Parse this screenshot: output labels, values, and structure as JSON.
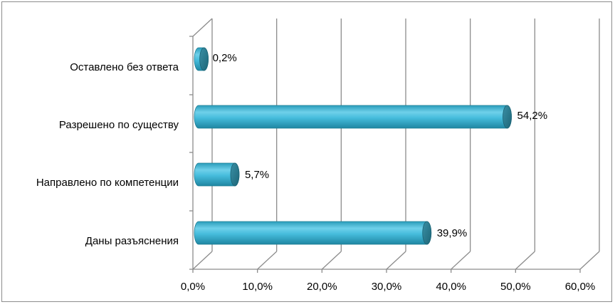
{
  "chart_data": {
    "type": "bar",
    "orientation": "horizontal",
    "style": "3d-cylinder",
    "categories": [
      "Оставлено без ответа",
      "Разрешено по существу",
      "Направлено по компетенции",
      "Даны разъяснения"
    ],
    "values": [
      0.2,
      54.2,
      5.7,
      39.9
    ],
    "data_labels": [
      "0,2%",
      "54,2%",
      "5,7%",
      "39,9%"
    ],
    "x_ticks": [
      0,
      10,
      20,
      30,
      40,
      50,
      60
    ],
    "x_tick_labels": [
      "0,0%",
      "10,0%",
      "20,0%",
      "30,0%",
      "40,0%",
      "50,0%",
      "60,0%"
    ],
    "xlim": [
      0,
      60
    ],
    "title": "",
    "xlabel": "",
    "ylabel": "",
    "grid": true,
    "legend": "none",
    "bar_color": "#3fb7d6",
    "bar_end_color": "#2b7f93",
    "grid_color": "#8c8c8c"
  }
}
